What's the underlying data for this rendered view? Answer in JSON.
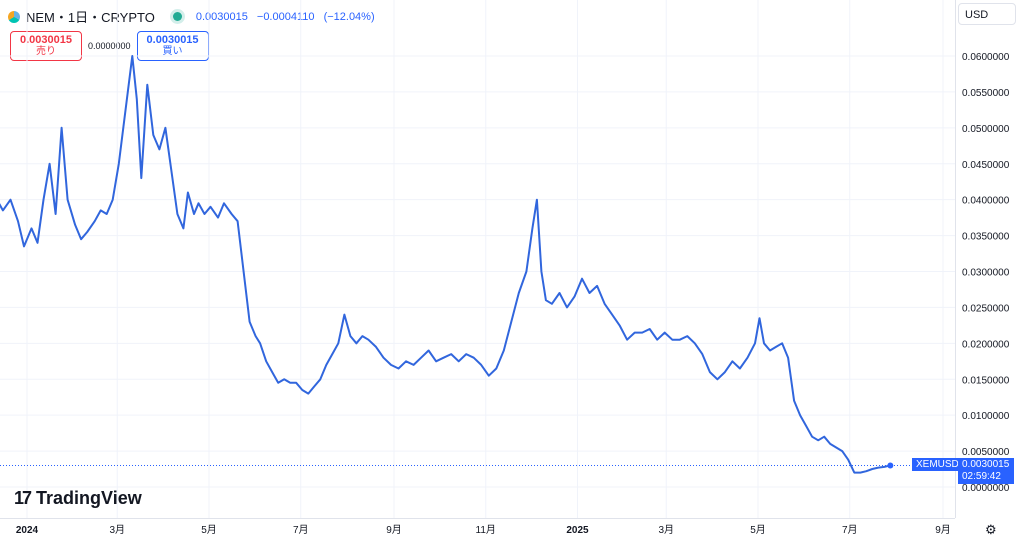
{
  "header": {
    "symbol_title": "NEM・1日・CRYPTO",
    "last": "0.0030015",
    "change": "−0.0004110",
    "change_pct": "(−12.04%)",
    "sell_price": "0.0030015",
    "sell_label": "売り",
    "spread": "0.0000000",
    "buy_price": "0.0030015",
    "buy_label": "買い",
    "currency": "USD"
  },
  "brand": {
    "name": "TradingView"
  },
  "price_line": {
    "symbol": "XEMUSD",
    "price": "0.0030015",
    "countdown": "02:59:42"
  },
  "colors": {
    "line": "#2962ff",
    "line_stroke": "#3166dd",
    "grid": "#f0f3fa",
    "text": "#131722"
  },
  "chart_data": {
    "type": "line",
    "title": "",
    "xlabel": "",
    "ylabel": "",
    "ylim": [
      0,
      0.065
    ],
    "grid": true,
    "y_ticks": [
      "0.0600000",
      "0.0550000",
      "0.0500000",
      "0.0450000",
      "0.0400000",
      "0.0350000",
      "0.0300000",
      "0.0250000",
      "0.0200000",
      "0.0150000",
      "0.0100000",
      "0.0050000",
      "0.0000000"
    ],
    "x_ticks": [
      {
        "label": "2024",
        "x": "2024-01-01",
        "bold": true
      },
      {
        "label": "3月",
        "x": "2024-03-01",
        "bold": false
      },
      {
        "label": "5月",
        "x": "2024-05-01",
        "bold": false
      },
      {
        "label": "7月",
        "x": "2024-07-01",
        "bold": false
      },
      {
        "label": "9月",
        "x": "2024-09-01",
        "bold": false
      },
      {
        "label": "11月",
        "x": "2024-11-01",
        "bold": false
      },
      {
        "label": "2025",
        "x": "2025-01-01",
        "bold": true
      },
      {
        "label": "3月",
        "x": "2025-03-01",
        "bold": false
      },
      {
        "label": "5月",
        "x": "2025-05-01",
        "bold": false
      },
      {
        "label": "7月",
        "x": "2025-07-01",
        "bold": false
      },
      {
        "label": "9月",
        "x": "2025-09-01",
        "bold": false
      }
    ],
    "series": [
      {
        "x": [
          "2023-12-03",
          "2023-12-07",
          "2023-12-12",
          "2023-12-16",
          "2023-12-21",
          "2023-12-26",
          "2023-12-30",
          "2024-01-04",
          "2024-01-08",
          "2024-01-12",
          "2024-01-16",
          "2024-01-20",
          "2024-01-24",
          "2024-01-28",
          "2024-02-02",
          "2024-02-06",
          "2024-02-10",
          "2024-02-15",
          "2024-02-19",
          "2024-02-23",
          "2024-02-27",
          "2024-03-02",
          "2024-03-05",
          "2024-03-08",
          "2024-03-11",
          "2024-03-14",
          "2024-03-17",
          "2024-03-21",
          "2024-03-25",
          "2024-03-29",
          "2024-04-02",
          "2024-04-06",
          "2024-04-10",
          "2024-04-14",
          "2024-04-17",
          "2024-04-21",
          "2024-04-24",
          "2024-04-28",
          "2024-05-02",
          "2024-05-07",
          "2024-05-11",
          "2024-05-16",
          "2024-05-20",
          "2024-05-24",
          "2024-05-28",
          "2024-06-01",
          "2024-06-04",
          "2024-06-08",
          "2024-06-12",
          "2024-06-16",
          "2024-06-20",
          "2024-06-24",
          "2024-06-28",
          "2024-07-02",
          "2024-07-06",
          "2024-07-10",
          "2024-07-14",
          "2024-07-18",
          "2024-07-22",
          "2024-07-26",
          "2024-07-30",
          "2024-08-03",
          "2024-08-07",
          "2024-08-11",
          "2024-08-15",
          "2024-08-20",
          "2024-08-25",
          "2024-08-30",
          "2024-09-04",
          "2024-09-09",
          "2024-09-14",
          "2024-09-19",
          "2024-09-24",
          "2024-09-29",
          "2024-10-04",
          "2024-10-09",
          "2024-10-14",
          "2024-10-19",
          "2024-10-24",
          "2024-10-29",
          "2024-11-03",
          "2024-11-08",
          "2024-11-13",
          "2024-11-18",
          "2024-11-23",
          "2024-11-28",
          "2024-12-02",
          "2024-12-05",
          "2024-12-08",
          "2024-12-11",
          "2024-12-15",
          "2024-12-20",
          "2024-12-25",
          "2024-12-30",
          "2025-01-04",
          "2025-01-09",
          "2025-01-14",
          "2025-01-19",
          "2025-01-24",
          "2025-01-29",
          "2025-02-03",
          "2025-02-08",
          "2025-02-13",
          "2025-02-18",
          "2025-02-23",
          "2025-02-28",
          "2025-03-05",
          "2025-03-10",
          "2025-03-15",
          "2025-03-20",
          "2025-03-25",
          "2025-03-30",
          "2025-04-04",
          "2025-04-09",
          "2025-04-14",
          "2025-04-19",
          "2025-04-24",
          "2025-04-29",
          "2025-05-02",
          "2025-05-05",
          "2025-05-09",
          "2025-05-13",
          "2025-05-17",
          "2025-05-21",
          "2025-05-25",
          "2025-05-29",
          "2025-06-02",
          "2025-06-06",
          "2025-06-10",
          "2025-06-14",
          "2025-06-18",
          "2025-06-22",
          "2025-06-26",
          "2025-06-30",
          "2025-07-04",
          "2025-07-08",
          "2025-07-12",
          "2025-07-16",
          "2025-07-20",
          "2025-07-24",
          "2025-07-28"
        ],
        "y": [
          0.039,
          0.037,
          0.04,
          0.0385,
          0.04,
          0.037,
          0.0335,
          0.036,
          0.034,
          0.04,
          0.045,
          0.038,
          0.05,
          0.04,
          0.0365,
          0.0345,
          0.0355,
          0.037,
          0.0385,
          0.038,
          0.04,
          0.045,
          0.05,
          0.055,
          0.06,
          0.054,
          0.043,
          0.056,
          0.049,
          0.047,
          0.05,
          0.044,
          0.038,
          0.036,
          0.041,
          0.038,
          0.0395,
          0.038,
          0.039,
          0.0375,
          0.0395,
          0.038,
          0.037,
          0.03,
          0.023,
          0.021,
          0.02,
          0.0175,
          0.016,
          0.0145,
          0.015,
          0.0145,
          0.0145,
          0.0135,
          0.013,
          0.014,
          0.015,
          0.017,
          0.0185,
          0.02,
          0.024,
          0.021,
          0.02,
          0.021,
          0.0205,
          0.0195,
          0.018,
          0.017,
          0.0165,
          0.0175,
          0.017,
          0.018,
          0.019,
          0.0175,
          0.018,
          0.0185,
          0.0175,
          0.0185,
          0.018,
          0.017,
          0.0155,
          0.0165,
          0.019,
          0.023,
          0.027,
          0.03,
          0.036,
          0.04,
          0.03,
          0.026,
          0.0255,
          0.027,
          0.025,
          0.0265,
          0.029,
          0.027,
          0.028,
          0.0255,
          0.024,
          0.0225,
          0.0205,
          0.0215,
          0.0215,
          0.022,
          0.0205,
          0.0215,
          0.0205,
          0.0205,
          0.021,
          0.02,
          0.0185,
          0.016,
          0.015,
          0.016,
          0.0175,
          0.0165,
          0.018,
          0.02,
          0.0235,
          0.02,
          0.019,
          0.0195,
          0.02,
          0.018,
          0.012,
          0.01,
          0.0085,
          0.007,
          0.0065,
          0.007,
          0.006,
          0.0055,
          0.005,
          0.0038,
          0.002,
          0.002,
          0.0022,
          0.0025,
          0.0027,
          0.0028,
          0.003
        ]
      }
    ]
  }
}
